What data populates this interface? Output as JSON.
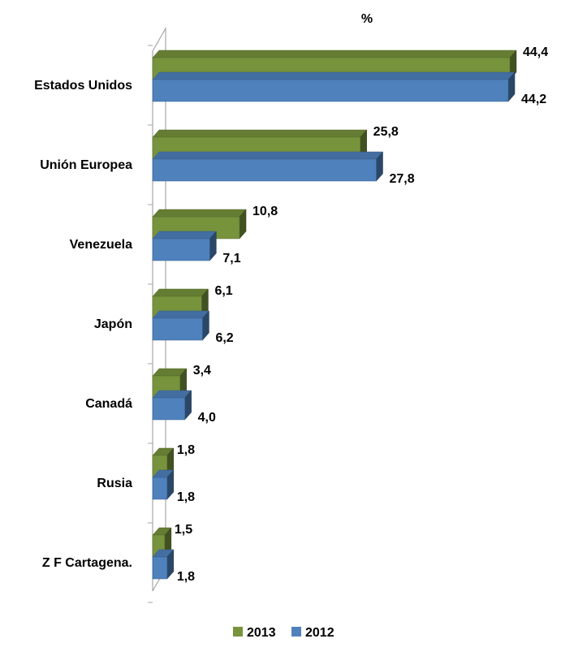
{
  "chart_data": {
    "type": "bar",
    "orientation": "horizontal",
    "style": "3d",
    "unit_label": "%",
    "categories": [
      "Estados Unidos",
      "Unión Europea",
      "Venezuela",
      "Japón",
      "Canadá",
      "Rusia",
      "Z F Cartagena."
    ],
    "series": [
      {
        "name": "2013",
        "color": "#77933c",
        "values": [
          44.4,
          25.8,
          10.8,
          6.1,
          3.4,
          1.8,
          1.5
        ],
        "labels": [
          "44,4",
          "25,8",
          "10,8",
          "6,1",
          "3,4",
          "1,8",
          "1,5"
        ]
      },
      {
        "name": "2012",
        "color": "#4f81bd",
        "values": [
          44.2,
          27.8,
          7.1,
          6.2,
          4.0,
          1.8,
          1.8
        ],
        "labels": [
          "44,2",
          "27,8",
          "7,1",
          "6,2",
          "4,0",
          "1,8",
          "1,8"
        ]
      }
    ],
    "xlim": [
      0,
      44.4
    ],
    "grid": false,
    "legend_position": "bottom"
  }
}
